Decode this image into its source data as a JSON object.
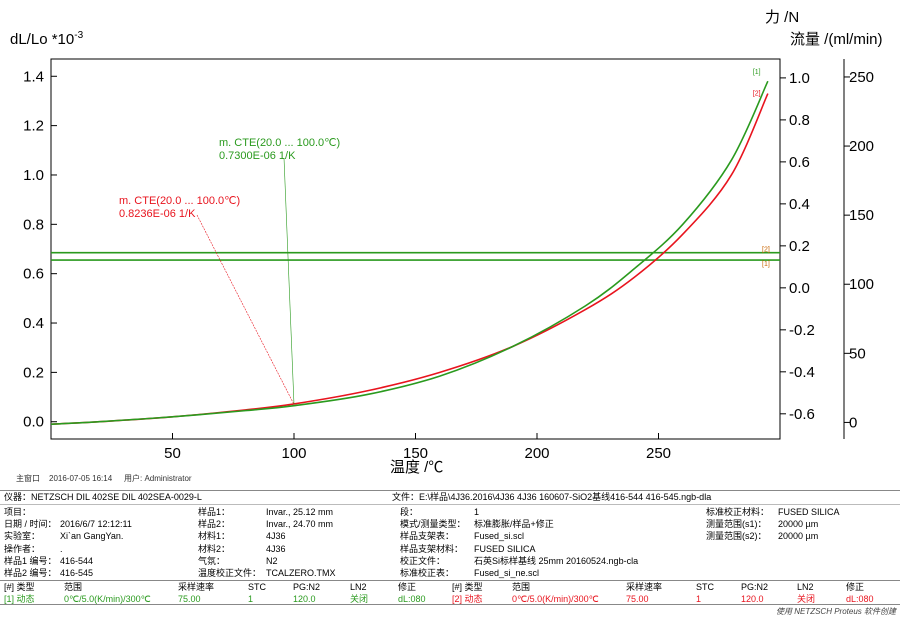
{
  "chart_data": {
    "type": "line",
    "y1_label": "dL/Lo *10",
    "y1_label_exp": "-3",
    "y2_label": "力 /N",
    "y3_label": "流量 /(ml/min)",
    "xlabel": "温度 /℃",
    "xlim": [
      0,
      300
    ],
    "x_ticks": [
      "50",
      "100",
      "150",
      "200",
      "250"
    ],
    "y1lim": [
      -0.07,
      1.47
    ],
    "y1_ticks": [
      "0.0",
      "0.2",
      "0.4",
      "0.6",
      "0.8",
      "1.0",
      "1.2",
      "1.4"
    ],
    "y2lim": [
      -0.72,
      1.09
    ],
    "y2_ticks": [
      "-0.6",
      "-0.4",
      "-0.2",
      "0.0",
      "0.2",
      "0.4",
      "0.6",
      "0.8",
      "1.0"
    ],
    "y3lim": [
      -12,
      263
    ],
    "y3_ticks": [
      "0",
      "50",
      "100",
      "150",
      "200",
      "250"
    ],
    "series": [
      {
        "name": "[1]",
        "color": "#2a9a1e",
        "x": [
          0,
          20,
          50,
          80,
          100,
          130,
          160,
          190,
          220,
          240,
          260,
          280,
          295
        ],
        "y": [
          -0.01,
          0.0,
          0.02,
          0.045,
          0.065,
          0.11,
          0.185,
          0.305,
          0.47,
          0.62,
          0.8,
          1.06,
          1.38
        ]
      },
      {
        "name": "[2]",
        "color": "#e8141e",
        "x": [
          0,
          20,
          50,
          80,
          100,
          130,
          160,
          190,
          220,
          240,
          260,
          280,
          295
        ],
        "y": [
          -0.01,
          0.0,
          0.02,
          0.048,
          0.072,
          0.125,
          0.2,
          0.305,
          0.455,
          0.585,
          0.76,
          1.0,
          1.33
        ]
      }
    ],
    "hlines": [
      {
        "label": "[2]",
        "y": 0.685,
        "color": "#2a9a1e"
      },
      {
        "label": "[1]",
        "y": 0.655,
        "color": "#2a9a1e"
      }
    ],
    "annotations": [
      {
        "line1": "m. CTE(20.0 ... 100.0℃)",
        "line2": "0.7300E-06 1/K",
        "color": "#2a9a1e"
      },
      {
        "line1": "m. CTE(20.0 ... 100.0℃)",
        "line2": "0.8236E-06 1/K",
        "color": "#e8141e"
      }
    ]
  },
  "status": {
    "window": "主窗口",
    "datetime": "2016-07-05 16:14",
    "user": "用户: Administrator"
  },
  "info": {
    "instrument": "仪器：NETZSCH DIL 402SE DIL 402SEA-0029-L",
    "file": "文件：E:\\样品\\4J36.2016\\4J36 4J36 160607-SiO2基线416-544 416-545.ngb-dla",
    "rows": [
      [
        "项目：",
        "",
        "样品1：",
        "Invar., 25.12 mm",
        "段：",
        "1",
        "标准校正材料：",
        "FUSED SILICA"
      ],
      [
        "日期 / 时间：",
        "2016/6/7 12:12:11",
        "样品2：",
        "Invar., 24.70 mm",
        "模式/测量类型：",
        "标准膨胀/样品+修正",
        "测量范围(s1)：",
        "20000 µm"
      ],
      [
        "实验室：",
        "Xi`an GangYan.",
        "材料1：",
        "4J36",
        "样品支架表：",
        "Fused_si.scl",
        "测量范围(s2)：",
        "20000 µm"
      ],
      [
        "操作者：",
        ".",
        "材料2：",
        "4J36",
        "样品支架材料：",
        "FUSED SILICA",
        "",
        ""
      ],
      [
        "样品1 编号：",
        "416-544",
        "气氛：",
        "N2",
        "校正文件：",
        "石英Si标样基线 25mm 20160524.ngb-cla",
        "",
        ""
      ],
      [
        "样品2 编号：",
        "416-545",
        "温度校正文件：",
        "TCALZERO.TMX",
        "标准校正表：",
        "Fused_si_ne.scl",
        "",
        ""
      ]
    ],
    "seg_header": [
      "[#] 类型",
      "范围",
      "采样速率",
      "STC",
      "PG:N2",
      "LN2",
      "修正"
    ],
    "seg1": [
      "[1] 动态",
      "0℃/5.0(K/min)/300℃",
      "75.00",
      "1",
      "120.0",
      "关闭",
      "dL:080"
    ],
    "seg2": [
      "[2] 动态",
      "0℃/5.0(K/min)/300℃",
      "75.00",
      "1",
      "120.0",
      "关闭",
      "dL:080"
    ],
    "footer": "使用 NETZSCH Proteus 软件创建"
  }
}
